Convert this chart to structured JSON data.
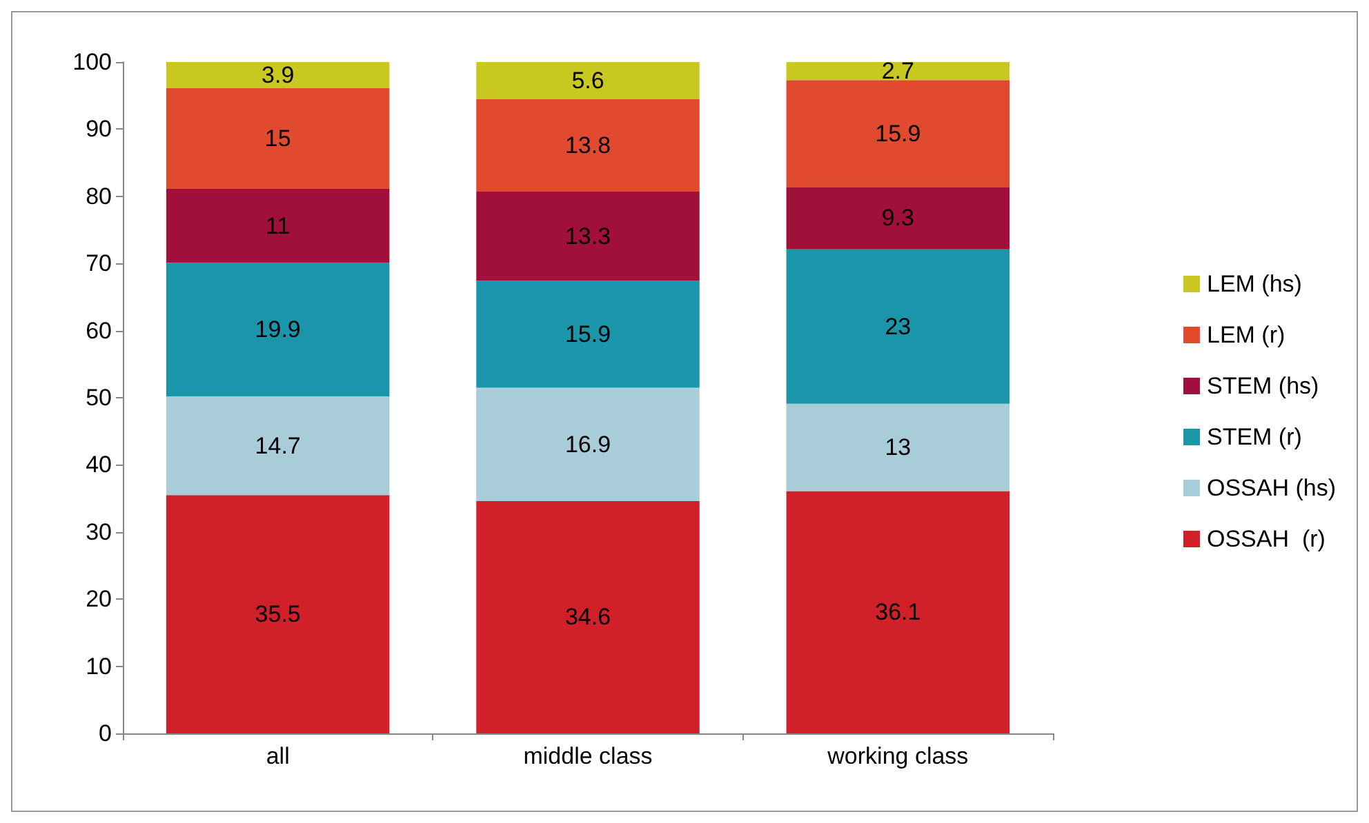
{
  "chart_data": {
    "type": "bar",
    "stacked": true,
    "categories": [
      "all",
      "middle class",
      "working class"
    ],
    "series": [
      {
        "name": "OSSAH  (r)",
        "color": "#d0202a",
        "values": [
          35.5,
          34.6,
          36.1
        ]
      },
      {
        "name": "OSSAH (hs)",
        "color": "#a8cdd8",
        "values": [
          14.7,
          16.9,
          13
        ]
      },
      {
        "name": "STEM (r)",
        "color": "#1b95aa",
        "values": [
          19.9,
          15.9,
          23
        ]
      },
      {
        "name": "STEM (hs)",
        "color": "#a0103a",
        "values": [
          11,
          13.3,
          9.3
        ]
      },
      {
        "name": "LEM (r)",
        "color": "#e24a30",
        "values": [
          15,
          13.8,
          15.9
        ]
      },
      {
        "name": "LEM (hs)",
        "color": "#c8c820",
        "values": [
          3.9,
          5.6,
          2.7
        ]
      }
    ],
    "ylim": [
      0,
      100
    ],
    "yticks": [
      0,
      10,
      20,
      30,
      40,
      50,
      60,
      70,
      80,
      90,
      100
    ],
    "grid": false,
    "legend": "right",
    "data_labels": true
  }
}
